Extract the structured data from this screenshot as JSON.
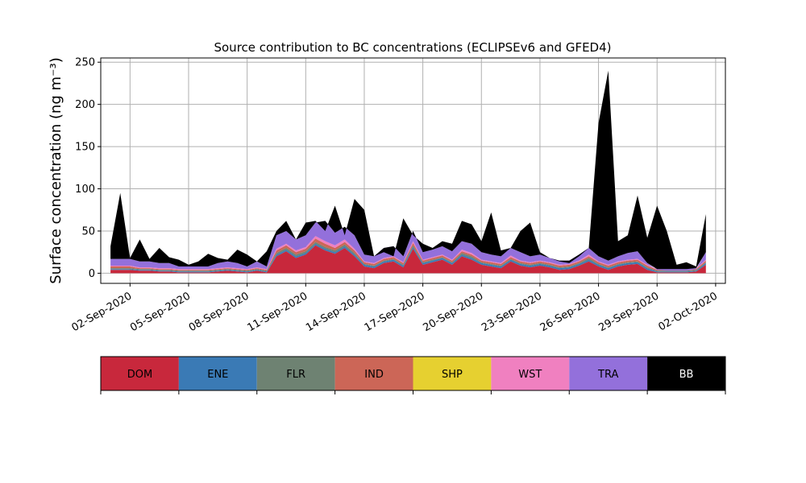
{
  "chart_data": {
    "type": "area",
    "title": "Source contribution to BC concentrations (ECLIPSEv6 and GFED4)",
    "ylabel": "Surface concentration (ng m⁻³)",
    "xlabel": "",
    "ylim": [
      -12,
      255
    ],
    "xlim": [
      "2020-08-31T12:00",
      "2020-10-02T12:00"
    ],
    "yticks": [
      0,
      50,
      100,
      150,
      200,
      250
    ],
    "xticks": [
      "02-Sep-2020",
      "05-Sep-2020",
      "08-Sep-2020",
      "11-Sep-2020",
      "14-Sep-2020",
      "17-Sep-2020",
      "20-Sep-2020",
      "23-Sep-2020",
      "26-Sep-2020",
      "29-Sep-2020",
      "02-Oct-2020"
    ],
    "grid": true,
    "legend_placement": "below",
    "series": [
      {
        "name": "DOM",
        "color": "#c8283c"
      },
      {
        "name": "ENE",
        "color": "#3a7ab5"
      },
      {
        "name": "FLR",
        "color": "#6e8272"
      },
      {
        "name": "IND",
        "color": "#cc6657"
      },
      {
        "name": "SHP",
        "color": "#e6d030"
      },
      {
        "name": "WST",
        "color": "#f080c0"
      },
      {
        "name": "TRA",
        "color": "#9370db"
      },
      {
        "name": "BB",
        "color": "#000000"
      }
    ],
    "x": [
      "2020-09-01T00:00",
      "2020-09-01T12:00",
      "2020-09-02T00:00",
      "2020-09-02T12:00",
      "2020-09-03T00:00",
      "2020-09-03T12:00",
      "2020-09-04T00:00",
      "2020-09-04T12:00",
      "2020-09-05T00:00",
      "2020-09-05T12:00",
      "2020-09-06T00:00",
      "2020-09-06T12:00",
      "2020-09-07T00:00",
      "2020-09-07T12:00",
      "2020-09-08T00:00",
      "2020-09-08T12:00",
      "2020-09-09T00:00",
      "2020-09-09T12:00",
      "2020-09-10T00:00",
      "2020-09-10T12:00",
      "2020-09-11T00:00",
      "2020-09-11T12:00",
      "2020-09-12T00:00",
      "2020-09-12T12:00",
      "2020-09-13T00:00",
      "2020-09-13T12:00",
      "2020-09-14T00:00",
      "2020-09-14T12:00",
      "2020-09-15T00:00",
      "2020-09-15T12:00",
      "2020-09-16T00:00",
      "2020-09-16T12:00",
      "2020-09-17T00:00",
      "2020-09-17T12:00",
      "2020-09-18T00:00",
      "2020-09-18T12:00",
      "2020-09-19T00:00",
      "2020-09-19T12:00",
      "2020-09-20T00:00",
      "2020-09-20T12:00",
      "2020-09-21T00:00",
      "2020-09-21T12:00",
      "2020-09-22T00:00",
      "2020-09-22T12:00",
      "2020-09-23T00:00",
      "2020-09-23T12:00",
      "2020-09-24T00:00",
      "2020-09-24T12:00",
      "2020-09-25T00:00",
      "2020-09-25T12:00",
      "2020-09-26T00:00",
      "2020-09-26T12:00",
      "2020-09-27T00:00",
      "2020-09-27T12:00",
      "2020-09-28T00:00",
      "2020-09-28T12:00",
      "2020-09-29T00:00",
      "2020-09-29T12:00",
      "2020-09-30T00:00",
      "2020-09-30T12:00",
      "2020-10-01T00:00",
      "2020-10-01T12:00"
    ],
    "stacked_top": {
      "DOM": [
        4,
        4,
        4,
        3,
        3,
        2,
        2,
        1,
        1,
        1,
        1,
        2,
        3,
        2,
        1,
        3,
        1,
        20,
        26,
        18,
        22,
        33,
        27,
        23,
        30,
        20,
        8,
        6,
        12,
        14,
        7,
        29,
        10,
        13,
        16,
        10,
        20,
        16,
        10,
        8,
        6,
        14,
        9,
        7,
        9,
        7,
        4,
        5,
        9,
        14,
        8,
        4,
        8,
        10,
        11,
        4,
        1,
        1,
        1,
        1,
        2,
        10
      ],
      "ENE": [
        5,
        5,
        5,
        4,
        4,
        3,
        3,
        2,
        2,
        2,
        2,
        3,
        4,
        3,
        2,
        4,
        2,
        22,
        28,
        20,
        24,
        35,
        29,
        25,
        32,
        22,
        10,
        8,
        14,
        16,
        9,
        31,
        12,
        15,
        18,
        12,
        22,
        18,
        12,
        10,
        8,
        16,
        11,
        9,
        11,
        9,
        6,
        7,
        11,
        16,
        10,
        6,
        10,
        12,
        13,
        6,
        2,
        2,
        2,
        2,
        3,
        12
      ],
      "FLR": [
        6,
        6,
        6,
        5,
        5,
        4,
        4,
        3,
        3,
        3,
        3,
        4,
        5,
        4,
        3,
        5,
        3,
        24,
        30,
        22,
        26,
        37,
        31,
        27,
        34,
        24,
        11,
        9,
        15,
        17,
        10,
        33,
        13,
        16,
        19,
        13,
        24,
        20,
        13,
        11,
        9,
        17,
        12,
        10,
        12,
        10,
        7,
        8,
        12,
        18,
        11,
        7,
        11,
        13,
        14,
        7,
        3,
        3,
        3,
        3,
        4,
        13
      ],
      "IND": [
        8,
        8,
        8,
        6,
        6,
        5,
        5,
        4,
        4,
        4,
        4,
        5,
        6,
        5,
        4,
        6,
        4,
        27,
        33,
        25,
        29,
        41,
        35,
        30,
        37,
        27,
        13,
        11,
        17,
        19,
        12,
        36,
        15,
        18,
        21,
        15,
        26,
        22,
        15,
        13,
        11,
        19,
        14,
        12,
        14,
        12,
        9,
        10,
        14,
        20,
        13,
        9,
        13,
        15,
        16,
        9,
        4,
        4,
        4,
        4,
        5,
        15
      ],
      "SHP": [
        8,
        8,
        8,
        6,
        6,
        5,
        5,
        4,
        4,
        4,
        4,
        5,
        6,
        5,
        4,
        6,
        4,
        27,
        33,
        25,
        29,
        41,
        35,
        30,
        37,
        27,
        13,
        11,
        17,
        19,
        12,
        36,
        15,
        18,
        21,
        15,
        26,
        22,
        15,
        13,
        11,
        19,
        14,
        12,
        14,
        12,
        9,
        10,
        14,
        20,
        13,
        9,
        13,
        15,
        16,
        9,
        4,
        4,
        4,
        4,
        5,
        15
      ],
      "WST": [
        9,
        9,
        9,
        7,
        7,
        6,
        6,
        5,
        5,
        5,
        5,
        6,
        7,
        6,
        5,
        7,
        5,
        29,
        35,
        27,
        31,
        44,
        38,
        33,
        40,
        29,
        14,
        12,
        18,
        20,
        13,
        38,
        16,
        19,
        22,
        16,
        28,
        24,
        16,
        14,
        12,
        21,
        15,
        13,
        15,
        13,
        10,
        11,
        15,
        22,
        14,
        10,
        14,
        16,
        17,
        10,
        5,
        5,
        5,
        5,
        6,
        16
      ],
      "TRA": [
        17,
        17,
        17,
        14,
        14,
        12,
        12,
        8,
        8,
        8,
        8,
        12,
        14,
        12,
        8,
        14,
        8,
        45,
        50,
        40,
        45,
        60,
        62,
        48,
        55,
        45,
        22,
        20,
        30,
        32,
        20,
        50,
        25,
        28,
        32,
        26,
        38,
        35,
        25,
        22,
        20,
        30,
        25,
        20,
        22,
        18,
        15,
        15,
        22,
        30,
        20,
        15,
        20,
        24,
        26,
        12,
        4,
        3,
        3,
        3,
        5,
        25
      ],
      "BB": [
        32,
        95,
        18,
        40,
        17,
        30,
        19,
        16,
        10,
        14,
        23,
        18,
        16,
        28,
        22,
        14,
        26,
        50,
        62,
        40,
        60,
        62,
        50,
        80,
        45,
        88,
        75,
        20,
        25,
        20,
        65,
        45,
        35,
        30,
        38,
        35,
        62,
        58,
        38,
        72,
        27,
        30,
        50,
        60,
        25,
        18,
        14,
        12,
        20,
        30,
        178,
        240,
        38,
        45,
        92,
        42,
        80,
        50,
        10,
        13,
        8,
        70
      ]
    }
  },
  "legend": {
    "items": [
      {
        "label": "DOM",
        "color": "#c8283c",
        "text_color": "#000000"
      },
      {
        "label": "ENE",
        "color": "#3a7ab5",
        "text_color": "#000000"
      },
      {
        "label": "FLR",
        "color": "#6e8272",
        "text_color": "#000000"
      },
      {
        "label": "IND",
        "color": "#cc6657",
        "text_color": "#000000"
      },
      {
        "label": "SHP",
        "color": "#e6d030",
        "text_color": "#000000"
      },
      {
        "label": "WST",
        "color": "#f080c0",
        "text_color": "#000000"
      },
      {
        "label": "TRA",
        "color": "#9370db",
        "text_color": "#000000"
      },
      {
        "label": "BB",
        "color": "#000000",
        "text_color": "#ffffff"
      }
    ]
  }
}
